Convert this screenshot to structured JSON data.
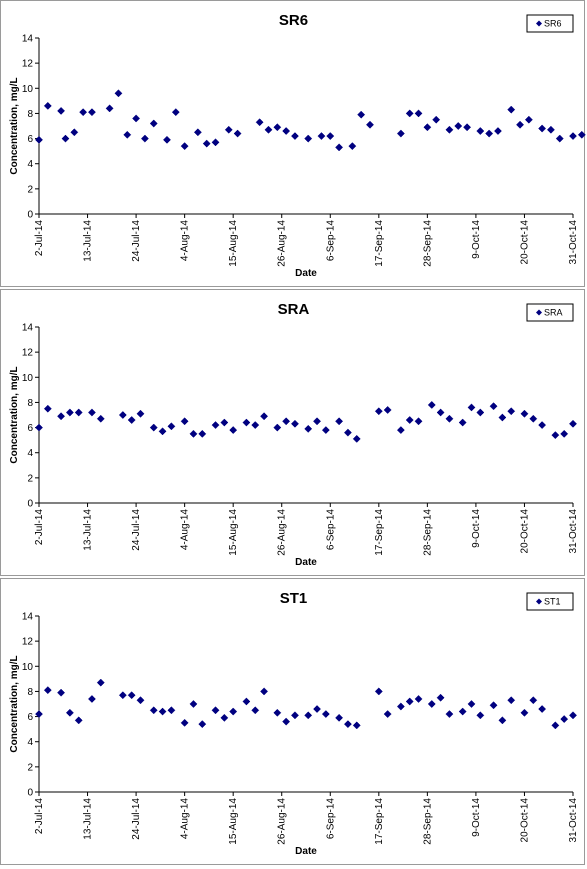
{
  "chart_data": [
    {
      "type": "scatter",
      "title": "SR6",
      "xlabel": "Date",
      "ylabel": "Concentration, mg/L",
      "ylim": [
        0,
        14
      ],
      "yticks": [
        0,
        2,
        4,
        6,
        8,
        10,
        12,
        14
      ],
      "xlim": [
        "2014-07-02",
        "2014-10-31"
      ],
      "xtick_labels": [
        "2-Jul-14",
        "13-Jul-14",
        "24-Jul-14",
        "4-Aug-14",
        "15-Aug-14",
        "26-Aug-14",
        "6-Sep-14",
        "17-Sep-14",
        "28-Sep-14",
        "9-Oct-14",
        "20-Oct-14",
        "31-Oct-14"
      ],
      "grid": false,
      "legend": "top-right",
      "marker_color": "#000080",
      "series": [
        {
          "name": "SR6",
          "x": [
            "2014-07-02",
            "2014-07-04",
            "2014-07-07",
            "2014-07-08",
            "2014-07-10",
            "2014-07-12",
            "2014-07-14",
            "2014-07-18",
            "2014-07-20",
            "2014-07-22",
            "2014-07-24",
            "2014-07-26",
            "2014-07-28",
            "2014-07-31",
            "2014-08-02",
            "2014-08-04",
            "2014-08-07",
            "2014-08-09",
            "2014-08-11",
            "2014-08-14",
            "2014-08-16",
            "2014-08-21",
            "2014-08-23",
            "2014-08-25",
            "2014-08-27",
            "2014-08-29",
            "2014-09-01",
            "2014-09-04",
            "2014-09-06",
            "2014-09-08",
            "2014-09-11",
            "2014-09-13",
            "2014-09-15",
            "2014-09-22",
            "2014-09-24",
            "2014-09-26",
            "2014-09-28",
            "2014-09-30",
            "2014-10-03",
            "2014-10-05",
            "2014-10-07",
            "2014-10-10",
            "2014-10-12",
            "2014-10-14",
            "2014-10-17",
            "2014-10-19",
            "2014-10-21",
            "2014-10-24",
            "2014-10-26",
            "2014-10-28",
            "2014-10-31",
            "2014-11-02"
          ],
          "y": [
            5.9,
            8.6,
            8.2,
            6.0,
            6.5,
            8.1,
            8.1,
            8.4,
            9.6,
            6.3,
            7.6,
            6.0,
            7.2,
            5.9,
            8.1,
            5.4,
            6.5,
            5.6,
            5.7,
            6.7,
            6.4,
            7.3,
            6.7,
            6.9,
            6.6,
            6.2,
            6.0,
            6.2,
            6.2,
            5.3,
            5.4,
            7.9,
            7.1,
            6.4,
            8.0,
            8.0,
            6.9,
            7.5,
            6.7,
            7.0,
            6.9,
            6.6,
            6.4,
            6.6,
            8.3,
            7.1,
            7.5,
            6.8,
            6.7,
            6.0,
            6.2,
            6.3
          ]
        }
      ]
    },
    {
      "type": "scatter",
      "title": "SRA",
      "xlabel": "Date",
      "ylabel": "Concentration, mg/L",
      "ylim": [
        0,
        14
      ],
      "yticks": [
        0,
        2,
        4,
        6,
        8,
        10,
        12,
        14
      ],
      "xlim": [
        "2014-07-02",
        "2014-10-31"
      ],
      "xtick_labels": [
        "2-Jul-14",
        "13-Jul-14",
        "24-Jul-14",
        "4-Aug-14",
        "15-Aug-14",
        "26-Aug-14",
        "6-Sep-14",
        "17-Sep-14",
        "28-Sep-14",
        "9-Oct-14",
        "20-Oct-14",
        "31-Oct-14"
      ],
      "grid": false,
      "legend": "top-right",
      "marker_color": "#000080",
      "series": [
        {
          "name": "SRA",
          "x": [
            "2014-07-02",
            "2014-07-04",
            "2014-07-07",
            "2014-07-09",
            "2014-07-11",
            "2014-07-14",
            "2014-07-16",
            "2014-07-21",
            "2014-07-23",
            "2014-07-25",
            "2014-07-28",
            "2014-07-30",
            "2014-08-01",
            "2014-08-04",
            "2014-08-06",
            "2014-08-08",
            "2014-08-11",
            "2014-08-13",
            "2014-08-15",
            "2014-08-18",
            "2014-08-20",
            "2014-08-22",
            "2014-08-25",
            "2014-08-27",
            "2014-08-29",
            "2014-09-01",
            "2014-09-03",
            "2014-09-05",
            "2014-09-08",
            "2014-09-10",
            "2014-09-12",
            "2014-09-17",
            "2014-09-19",
            "2014-09-22",
            "2014-09-24",
            "2014-09-26",
            "2014-09-29",
            "2014-10-01",
            "2014-10-03",
            "2014-10-06",
            "2014-10-08",
            "2014-10-10",
            "2014-10-13",
            "2014-10-15",
            "2014-10-17",
            "2014-10-20",
            "2014-10-22",
            "2014-10-24",
            "2014-10-27",
            "2014-10-29",
            "2014-10-31"
          ],
          "y": [
            6.0,
            7.5,
            6.9,
            7.2,
            7.2,
            7.2,
            6.7,
            7.0,
            6.6,
            7.1,
            6.0,
            5.7,
            6.1,
            6.5,
            5.5,
            5.5,
            6.2,
            6.4,
            5.8,
            6.4,
            6.2,
            6.9,
            6.0,
            6.5,
            6.3,
            5.9,
            6.5,
            5.8,
            6.5,
            5.6,
            5.1,
            7.3,
            7.4,
            5.8,
            6.6,
            6.5,
            7.8,
            7.2,
            6.7,
            6.4,
            7.6,
            7.2,
            7.7,
            6.8,
            7.3,
            7.1,
            6.7,
            6.2,
            5.4,
            5.5,
            6.3
          ]
        }
      ]
    },
    {
      "type": "scatter",
      "title": "ST1",
      "xlabel": "Date",
      "ylabel": "Concentration, mg/L",
      "ylim": [
        0,
        14
      ],
      "yticks": [
        0,
        2,
        4,
        6,
        8,
        10,
        12,
        14
      ],
      "xlim": [
        "2014-07-02",
        "2014-10-31"
      ],
      "xtick_labels": [
        "2-Jul-14",
        "13-Jul-14",
        "24-Jul-14",
        "4-Aug-14",
        "15-Aug-14",
        "26-Aug-14",
        "6-Sep-14",
        "17-Sep-14",
        "28-Sep-14",
        "9-Oct-14",
        "20-Oct-14",
        "31-Oct-14"
      ],
      "grid": false,
      "legend": "top-right",
      "marker_color": "#000080",
      "series": [
        {
          "name": "ST1",
          "x": [
            "2014-07-02",
            "2014-07-04",
            "2014-07-07",
            "2014-07-09",
            "2014-07-11",
            "2014-07-14",
            "2014-07-16",
            "2014-07-21",
            "2014-07-23",
            "2014-07-25",
            "2014-07-28",
            "2014-07-30",
            "2014-08-01",
            "2014-08-04",
            "2014-08-06",
            "2014-08-08",
            "2014-08-11",
            "2014-08-13",
            "2014-08-15",
            "2014-08-18",
            "2014-08-20",
            "2014-08-22",
            "2014-08-25",
            "2014-08-27",
            "2014-08-29",
            "2014-09-01",
            "2014-09-03",
            "2014-09-05",
            "2014-09-08",
            "2014-09-10",
            "2014-09-12",
            "2014-09-17",
            "2014-09-19",
            "2014-09-22",
            "2014-09-24",
            "2014-09-26",
            "2014-09-29",
            "2014-10-01",
            "2014-10-03",
            "2014-10-06",
            "2014-10-08",
            "2014-10-10",
            "2014-10-13",
            "2014-10-15",
            "2014-10-17",
            "2014-10-20",
            "2014-10-22",
            "2014-10-24",
            "2014-10-27",
            "2014-10-29",
            "2014-10-31"
          ],
          "y": [
            6.2,
            8.1,
            7.9,
            6.3,
            5.7,
            7.4,
            8.7,
            7.7,
            7.7,
            7.3,
            6.5,
            6.4,
            6.5,
            5.5,
            7.0,
            5.4,
            6.5,
            5.9,
            6.4,
            7.2,
            6.5,
            8.0,
            6.3,
            5.6,
            6.1,
            6.1,
            6.6,
            6.2,
            5.9,
            5.4,
            5.3,
            8.0,
            6.2,
            6.8,
            7.2,
            7.4,
            7.0,
            7.5,
            6.2,
            6.4,
            7.0,
            6.1,
            6.9,
            5.7,
            7.3,
            6.3,
            7.3,
            6.6,
            5.3,
            5.8,
            6.1
          ]
        }
      ]
    }
  ]
}
